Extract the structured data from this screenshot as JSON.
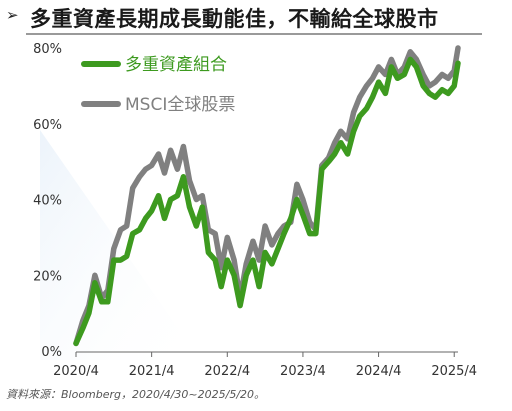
{
  "header": {
    "arrow": "➢",
    "title": "多重資產長期成長動能佳，不輸給全球股市"
  },
  "source_note": "資料來源：Bloomberg，2020/4/30~2025/5/20。",
  "chart_data": {
    "type": "line",
    "title": "",
    "xlabel": "",
    "ylabel": "",
    "ylim": [
      0,
      80
    ],
    "yticks": [
      "0%",
      "20%",
      "40%",
      "60%",
      "80%"
    ],
    "x_tick_labels": [
      "2020/4",
      "2021/4",
      "2022/4",
      "2023/4",
      "2024/4",
      "2025/4"
    ],
    "grid": false,
    "legend_position": "top-left",
    "x_start": 2020.33,
    "x_end": 2025.38,
    "series": [
      {
        "name": "多重資產組合",
        "color": "#3d9a1f",
        "x": [
          2020.33,
          2020.42,
          2020.5,
          2020.58,
          2020.67,
          2020.75,
          2020.83,
          2020.92,
          2021.0,
          2021.08,
          2021.17,
          2021.25,
          2021.33,
          2021.42,
          2021.5,
          2021.58,
          2021.67,
          2021.75,
          2021.83,
          2021.92,
          2022.0,
          2022.08,
          2022.17,
          2022.25,
          2022.33,
          2022.42,
          2022.5,
          2022.58,
          2022.67,
          2022.75,
          2022.83,
          2022.92,
          2023.0,
          2023.08,
          2023.17,
          2023.25,
          2023.33,
          2023.42,
          2023.5,
          2023.58,
          2023.67,
          2023.75,
          2023.83,
          2023.92,
          2024.0,
          2024.08,
          2024.17,
          2024.25,
          2024.33,
          2024.42,
          2024.5,
          2024.58,
          2024.67,
          2024.75,
          2024.83,
          2024.92,
          2025.0,
          2025.08,
          2025.17,
          2025.25,
          2025.33,
          2025.38
        ],
        "values": [
          2,
          6,
          10,
          18,
          13,
          13,
          24,
          24,
          25,
          31,
          32,
          35,
          37,
          41,
          35,
          40,
          41,
          46,
          38,
          33,
          38,
          26,
          24,
          17,
          24,
          20,
          12,
          20,
          24,
          17,
          26,
          23,
          27,
          31,
          35,
          40,
          36,
          31,
          31,
          48,
          50,
          52,
          55,
          52,
          58,
          62,
          64,
          67,
          71,
          68,
          75,
          72,
          73,
          77,
          75,
          70,
          68,
          67,
          69,
          68,
          70,
          76
        ]
      },
      {
        "name": "MSCI全球股票",
        "color": "#808080",
        "x": [
          2020.33,
          2020.42,
          2020.5,
          2020.58,
          2020.67,
          2020.75,
          2020.83,
          2020.92,
          2021.0,
          2021.08,
          2021.17,
          2021.25,
          2021.33,
          2021.42,
          2021.5,
          2021.58,
          2021.67,
          2021.75,
          2021.83,
          2021.92,
          2022.0,
          2022.08,
          2022.17,
          2022.25,
          2022.33,
          2022.42,
          2022.5,
          2022.58,
          2022.67,
          2022.75,
          2022.83,
          2022.92,
          2023.0,
          2023.08,
          2023.17,
          2023.25,
          2023.33,
          2023.42,
          2023.5,
          2023.58,
          2023.67,
          2023.75,
          2023.83,
          2023.92,
          2024.0,
          2024.08,
          2024.17,
          2024.25,
          2024.33,
          2024.42,
          2024.5,
          2024.58,
          2024.67,
          2024.75,
          2024.83,
          2024.92,
          2025.0,
          2025.08,
          2025.17,
          2025.25,
          2025.33,
          2025.38
        ],
        "values": [
          2,
          8,
          12,
          20,
          14,
          16,
          27,
          32,
          33,
          43,
          46,
          48,
          49,
          52,
          47,
          53,
          48,
          54,
          45,
          40,
          41,
          32,
          31,
          22,
          30,
          24,
          14,
          23,
          29,
          24,
          33,
          28,
          31,
          33,
          34,
          44,
          40,
          34,
          32,
          49,
          51,
          55,
          58,
          56,
          63,
          67,
          70,
          72,
          75,
          73,
          77,
          73,
          75,
          79,
          77,
          73,
          70,
          71,
          73,
          72,
          74,
          80
        ]
      }
    ]
  }
}
